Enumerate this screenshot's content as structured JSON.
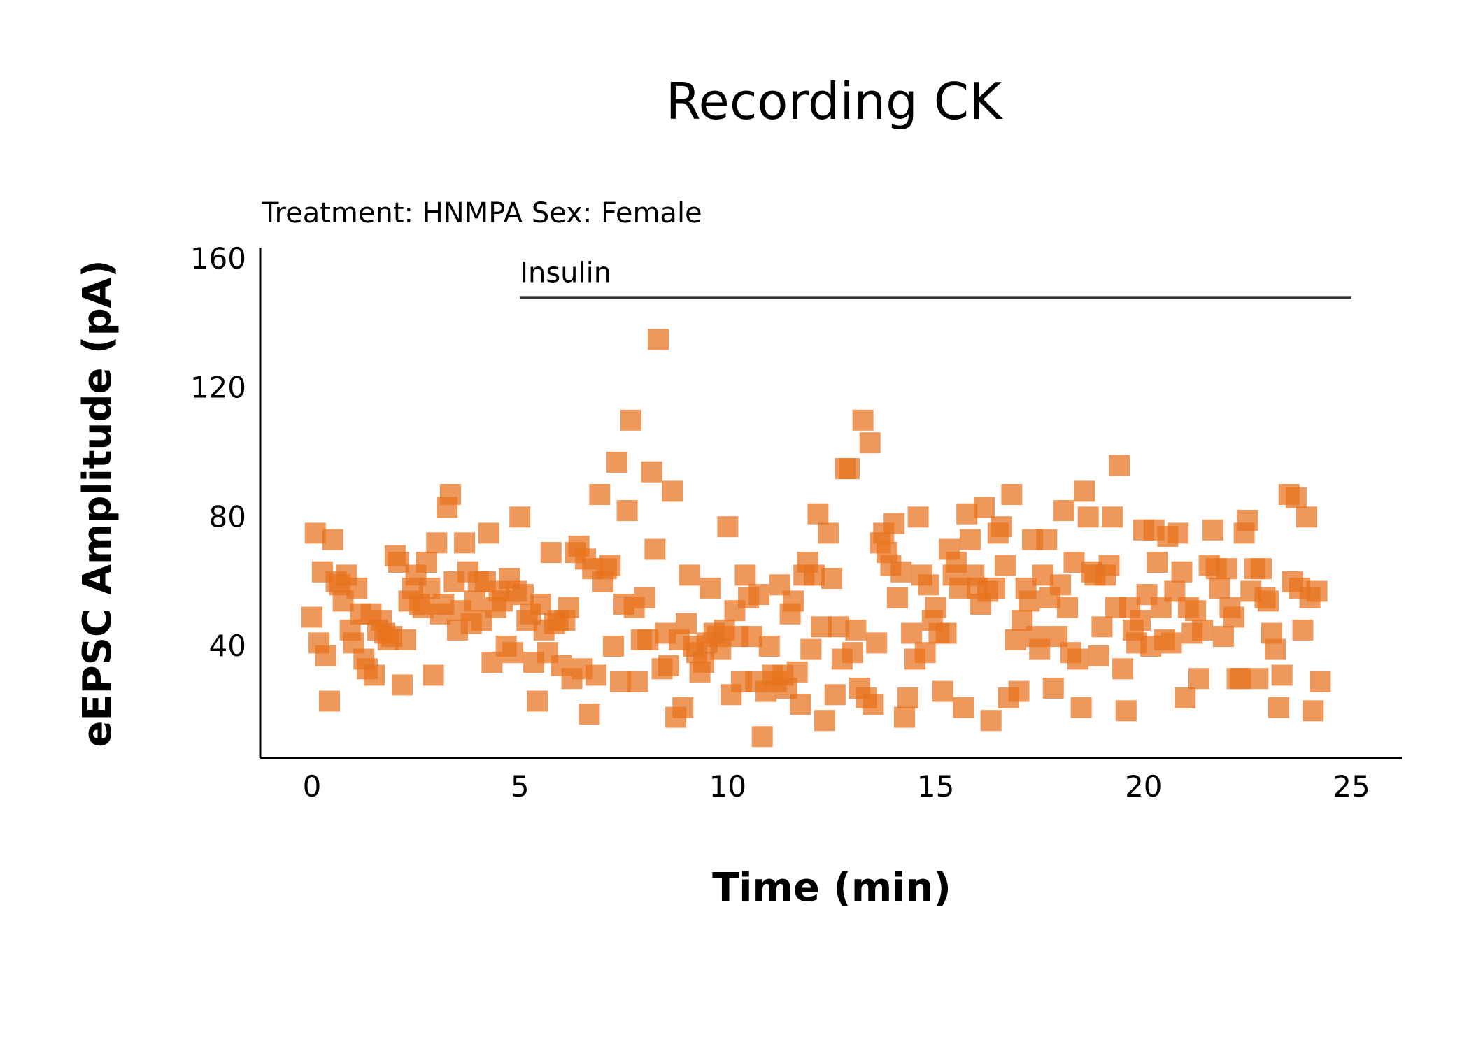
{
  "chart_data": {
    "type": "scatter",
    "title": "Recording CK",
    "subtitle": "Treatment: HNMPA  Sex: Female",
    "xlabel": "Time (min)",
    "ylabel": "eEPSC Amplitude (pA)",
    "xlim": [
      -1,
      26
    ],
    "ylim": [
      5,
      160
    ],
    "xticks": [
      0,
      5,
      10,
      15,
      20,
      25
    ],
    "yticks": [
      40,
      80,
      120,
      160
    ],
    "marker": "square",
    "color": "#e8721c",
    "grid": false,
    "legend": "none",
    "annotation": {
      "label": "Insulin",
      "x_start": 5,
      "x_end": 25,
      "y": 148
    },
    "points": [
      [
        0.0,
        49
      ],
      [
        0.08,
        75
      ],
      [
        0.17,
        41
      ],
      [
        0.25,
        63
      ],
      [
        0.33,
        37
      ],
      [
        0.42,
        23
      ],
      [
        0.5,
        73
      ],
      [
        0.58,
        60
      ],
      [
        0.67,
        59
      ],
      [
        0.75,
        54
      ],
      [
        0.83,
        62
      ],
      [
        0.92,
        45
      ],
      [
        1.0,
        41
      ],
      [
        1.08,
        58
      ],
      [
        1.17,
        50
      ],
      [
        1.25,
        36
      ],
      [
        1.33,
        33
      ],
      [
        1.42,
        50
      ],
      [
        1.5,
        31
      ],
      [
        1.58,
        45
      ],
      [
        1.67,
        48
      ],
      [
        1.75,
        44
      ],
      [
        1.83,
        42
      ],
      [
        1.92,
        43
      ],
      [
        2.0,
        68
      ],
      [
        2.08,
        66
      ],
      [
        2.17,
        28
      ],
      [
        2.25,
        42
      ],
      [
        2.33,
        54
      ],
      [
        2.42,
        58
      ],
      [
        2.5,
        62
      ],
      [
        2.58,
        53
      ],
      [
        2.67,
        52
      ],
      [
        2.75,
        66
      ],
      [
        2.83,
        58
      ],
      [
        2.92,
        31
      ],
      [
        3.0,
        72
      ],
      [
        3.08,
        50
      ],
      [
        3.17,
        53
      ],
      [
        3.25,
        83
      ],
      [
        3.33,
        87
      ],
      [
        3.42,
        60
      ],
      [
        3.5,
        45
      ],
      [
        3.58,
        51
      ],
      [
        3.67,
        72
      ],
      [
        3.75,
        63
      ],
      [
        3.83,
        47
      ],
      [
        3.92,
        54
      ],
      [
        4.0,
        60
      ],
      [
        4.08,
        48
      ],
      [
        4.17,
        60
      ],
      [
        4.25,
        75
      ],
      [
        4.33,
        35
      ],
      [
        4.42,
        52
      ],
      [
        4.5,
        57
      ],
      [
        4.58,
        54
      ],
      [
        4.67,
        40
      ],
      [
        4.75,
        61
      ],
      [
        4.83,
        38
      ],
      [
        4.92,
        57
      ],
      [
        5.0,
        80
      ],
      [
        5.08,
        56
      ],
      [
        5.17,
        48
      ],
      [
        5.25,
        50
      ],
      [
        5.33,
        35
      ],
      [
        5.42,
        23
      ],
      [
        5.5,
        53
      ],
      [
        5.58,
        45
      ],
      [
        5.67,
        38
      ],
      [
        5.75,
        69
      ],
      [
        5.83,
        47
      ],
      [
        5.92,
        48
      ],
      [
        6.0,
        34
      ],
      [
        6.08,
        48
      ],
      [
        6.17,
        52
      ],
      [
        6.25,
        30
      ],
      [
        6.33,
        69
      ],
      [
        6.42,
        71
      ],
      [
        6.5,
        33
      ],
      [
        6.58,
        67
      ],
      [
        6.67,
        19
      ],
      [
        6.75,
        64
      ],
      [
        6.83,
        31
      ],
      [
        6.92,
        87
      ],
      [
        7.0,
        60
      ],
      [
        7.08,
        64
      ],
      [
        7.17,
        65
      ],
      [
        7.25,
        40
      ],
      [
        7.33,
        97
      ],
      [
        7.42,
        29
      ],
      [
        7.5,
        53
      ],
      [
        7.58,
        82
      ],
      [
        7.67,
        110
      ],
      [
        7.75,
        52
      ],
      [
        7.83,
        29
      ],
      [
        7.92,
        42
      ],
      [
        8.0,
        55
      ],
      [
        8.08,
        42
      ],
      [
        8.17,
        94
      ],
      [
        8.25,
        70
      ],
      [
        8.33,
        135
      ],
      [
        8.42,
        33
      ],
      [
        8.5,
        44
      ],
      [
        8.58,
        34
      ],
      [
        8.67,
        88
      ],
      [
        8.75,
        18
      ],
      [
        8.83,
        42
      ],
      [
        8.92,
        21
      ],
      [
        9.0,
        47
      ],
      [
        9.08,
        62
      ],
      [
        9.17,
        40
      ],
      [
        9.25,
        38
      ],
      [
        9.33,
        32
      ],
      [
        9.42,
        35
      ],
      [
        9.5,
        41
      ],
      [
        9.58,
        58
      ],
      [
        9.67,
        44
      ],
      [
        9.75,
        43
      ],
      [
        9.83,
        39
      ],
      [
        9.92,
        45
      ],
      [
        10.0,
        77
      ],
      [
        10.08,
        25
      ],
      [
        10.17,
        51
      ],
      [
        10.25,
        43
      ],
      [
        10.33,
        29
      ],
      [
        10.42,
        62
      ],
      [
        10.5,
        55
      ],
      [
        10.58,
        43
      ],
      [
        10.67,
        29
      ],
      [
        10.75,
        56
      ],
      [
        10.83,
        12
      ],
      [
        10.92,
        26
      ],
      [
        11.0,
        40
      ],
      [
        11.08,
        31
      ],
      [
        11.17,
        29
      ],
      [
        11.25,
        59
      ],
      [
        11.33,
        31
      ],
      [
        11.42,
        27
      ],
      [
        11.5,
        50
      ],
      [
        11.58,
        54
      ],
      [
        11.67,
        32
      ],
      [
        11.75,
        22
      ],
      [
        11.83,
        62
      ],
      [
        11.92,
        66
      ],
      [
        12.0,
        39
      ],
      [
        12.08,
        62
      ],
      [
        12.17,
        81
      ],
      [
        12.25,
        46
      ],
      [
        12.33,
        17
      ],
      [
        12.42,
        75
      ],
      [
        12.5,
        61
      ],
      [
        12.58,
        25
      ],
      [
        12.67,
        46
      ],
      [
        12.75,
        36
      ],
      [
        12.83,
        95
      ],
      [
        12.92,
        95
      ],
      [
        13.0,
        38
      ],
      [
        13.08,
        45
      ],
      [
        13.17,
        27
      ],
      [
        13.25,
        110
      ],
      [
        13.33,
        24
      ],
      [
        13.42,
        103
      ],
      [
        13.5,
        22
      ],
      [
        13.58,
        41
      ],
      [
        13.67,
        72
      ],
      [
        13.75,
        75
      ],
      [
        13.83,
        69
      ],
      [
        13.92,
        65
      ],
      [
        14.0,
        78
      ],
      [
        14.08,
        55
      ],
      [
        14.17,
        63
      ],
      [
        14.25,
        18
      ],
      [
        14.33,
        24
      ],
      [
        14.42,
        44
      ],
      [
        14.5,
        36
      ],
      [
        14.58,
        80
      ],
      [
        14.67,
        62
      ],
      [
        14.75,
        38
      ],
      [
        14.83,
        59
      ],
      [
        14.92,
        48
      ],
      [
        15.0,
        52
      ],
      [
        15.08,
        44
      ],
      [
        15.17,
        26
      ],
      [
        15.25,
        44
      ],
      [
        15.33,
        70
      ],
      [
        15.42,
        62
      ],
      [
        15.5,
        66
      ],
      [
        15.58,
        58
      ],
      [
        15.67,
        21
      ],
      [
        15.75,
        81
      ],
      [
        15.83,
        73
      ],
      [
        15.92,
        62
      ],
      [
        16.0,
        58
      ],
      [
        16.08,
        53
      ],
      [
        16.17,
        83
      ],
      [
        16.25,
        57
      ],
      [
        16.33,
        17
      ],
      [
        16.42,
        58
      ],
      [
        16.5,
        75
      ],
      [
        16.58,
        77
      ],
      [
        16.67,
        65
      ],
      [
        16.75,
        24
      ],
      [
        16.83,
        87
      ],
      [
        16.92,
        42
      ],
      [
        17.0,
        26
      ],
      [
        17.08,
        48
      ],
      [
        17.17,
        58
      ],
      [
        17.25,
        54
      ],
      [
        17.33,
        73
      ],
      [
        17.42,
        43
      ],
      [
        17.5,
        39
      ],
      [
        17.58,
        62
      ],
      [
        17.67,
        73
      ],
      [
        17.75,
        55
      ],
      [
        17.83,
        27
      ],
      [
        17.92,
        43
      ],
      [
        18.0,
        59
      ],
      [
        18.08,
        82
      ],
      [
        18.17,
        52
      ],
      [
        18.25,
        38
      ],
      [
        18.33,
        66
      ],
      [
        18.42,
        36
      ],
      [
        18.5,
        21
      ],
      [
        18.58,
        88
      ],
      [
        18.67,
        80
      ],
      [
        18.75,
        63
      ],
      [
        18.83,
        62
      ],
      [
        18.92,
        37
      ],
      [
        19.0,
        46
      ],
      [
        19.08,
        62
      ],
      [
        19.17,
        65
      ],
      [
        19.25,
        80
      ],
      [
        19.33,
        52
      ],
      [
        19.42,
        96
      ],
      [
        19.5,
        33
      ],
      [
        19.58,
        20
      ],
      [
        19.67,
        52
      ],
      [
        19.75,
        45
      ],
      [
        19.83,
        41
      ],
      [
        19.92,
        48
      ],
      [
        20.0,
        76
      ],
      [
        20.08,
        56
      ],
      [
        20.17,
        40
      ],
      [
        20.25,
        76
      ],
      [
        20.33,
        66
      ],
      [
        20.42,
        52
      ],
      [
        20.5,
        42
      ],
      [
        20.58,
        74
      ],
      [
        20.67,
        41
      ],
      [
        20.75,
        57
      ],
      [
        20.83,
        75
      ],
      [
        20.92,
        63
      ],
      [
        21.0,
        24
      ],
      [
        21.08,
        52
      ],
      [
        21.17,
        44
      ],
      [
        21.25,
        51
      ],
      [
        21.33,
        30
      ],
      [
        21.42,
        45
      ],
      [
        21.58,
        65
      ],
      [
        21.67,
        76
      ],
      [
        21.75,
        64
      ],
      [
        21.83,
        58
      ],
      [
        21.92,
        43
      ],
      [
        22.0,
        64
      ],
      [
        22.08,
        52
      ],
      [
        22.17,
        49
      ],
      [
        22.25,
        30
      ],
      [
        22.33,
        30
      ],
      [
        22.42,
        75
      ],
      [
        22.5,
        79
      ],
      [
        22.58,
        57
      ],
      [
        22.67,
        64
      ],
      [
        22.75,
        30
      ],
      [
        22.83,
        64
      ],
      [
        22.92,
        55
      ],
      [
        23.0,
        54
      ],
      [
        23.08,
        44
      ],
      [
        23.17,
        39
      ],
      [
        23.25,
        21
      ],
      [
        23.33,
        31
      ],
      [
        23.5,
        87
      ],
      [
        23.58,
        60
      ],
      [
        23.67,
        86
      ],
      [
        23.75,
        58
      ],
      [
        23.83,
        45
      ],
      [
        23.92,
        80
      ],
      [
        24.0,
        55
      ],
      [
        24.08,
        20
      ],
      [
        24.17,
        57
      ],
      [
        24.25,
        29
      ]
    ]
  }
}
